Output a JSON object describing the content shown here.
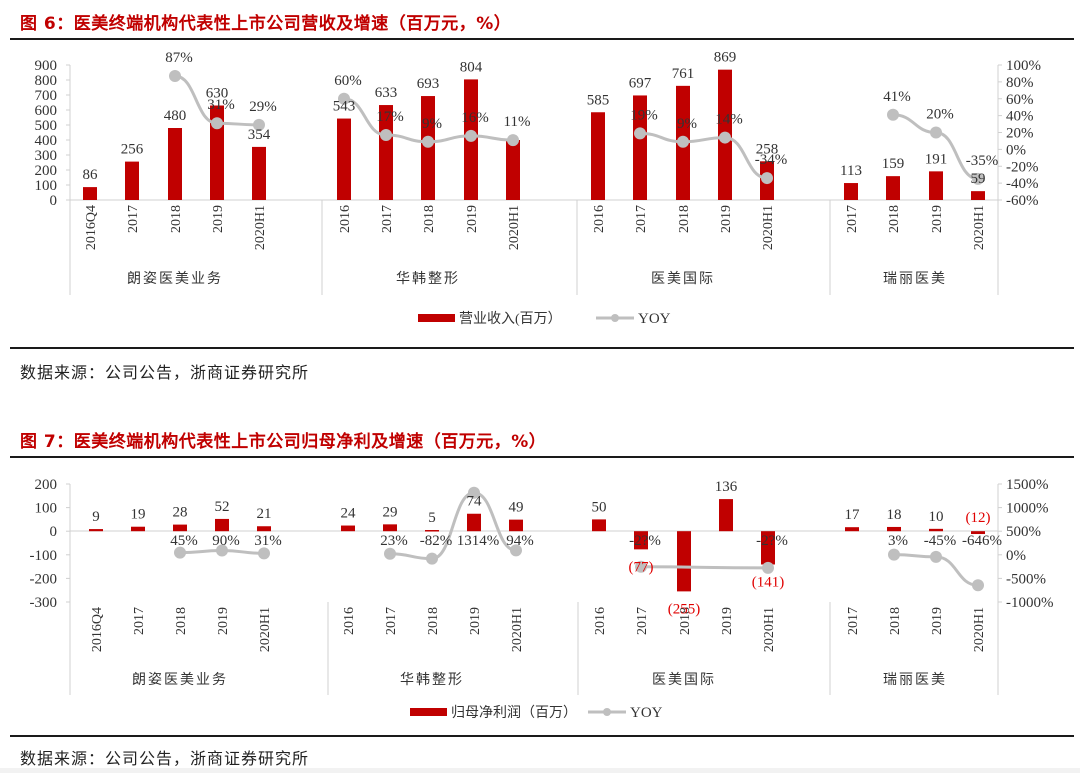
{
  "figures": [
    {
      "title": "图 6：医美终端机构代表性上市公司营收及增速（百万元，%）",
      "legend": {
        "bar": "营业收入(百万）",
        "line": "YOY"
      },
      "source": "数据来源：公司公告，浙商证券研究所"
    },
    {
      "title": "图 7：医美终端机构代表性上市公司归母净利及增速（百万元，%）",
      "legend": {
        "bar": "归母净利润（百万）",
        "line": "YOY"
      },
      "source": "数据来源：公司公告，浙商证券研究所"
    }
  ],
  "colors": {
    "bar": "#c00000",
    "line": "#bfbfbf",
    "negative_label": "#e00000",
    "title": "#c00000"
  },
  "chart_data": [
    {
      "type": "bar",
      "title": "图 6：医美终端机构代表性上市公司营收及增速（百万元，%）",
      "ylabel": "营业收入(百万）",
      "y2label": "YOY",
      "ylim": [
        0,
        900
      ],
      "yticks": [
        "900",
        "800",
        "700",
        "600",
        "500",
        "400",
        "300",
        "200",
        "100",
        "0"
      ],
      "y2lim": [
        -60,
        100
      ],
      "y2ticks": [
        "100%",
        "80%",
        "60%",
        "40%",
        "20%",
        "0%",
        "-20%",
        "-40%",
        "-60%"
      ],
      "groups": [
        {
          "name": "朗姿医美业务",
          "categories": [
            "2016Q4",
            "2017",
            "2018",
            "2019",
            "2020H1"
          ],
          "values": [
            86,
            256,
            480,
            630,
            354
          ],
          "value_labels": [
            "86",
            "256",
            "480",
            "630",
            "354"
          ],
          "yoy": [
            null,
            null,
            87,
            31,
            29
          ],
          "yoy_labels": [
            "",
            "",
            "87%",
            "31%",
            "29%"
          ]
        },
        {
          "name": "华韩整形",
          "categories": [
            "2016",
            "2017",
            "2018",
            "2019",
            "2020H1"
          ],
          "values": [
            543,
            633,
            693,
            804,
            400
          ],
          "value_labels": [
            "543",
            "633",
            "693",
            "804",
            ""
          ],
          "yoy": [
            60,
            17,
            9,
            16,
            11
          ],
          "yoy_labels": [
            "60%",
            "17%",
            "9%",
            "16%",
            "11%"
          ]
        },
        {
          "name": "医美国际",
          "categories": [
            "2016",
            "2017",
            "2018",
            "2019",
            "2020H1"
          ],
          "values": [
            585,
            697,
            761,
            869,
            258
          ],
          "value_labels": [
            "585",
            "697",
            "761",
            "869",
            "258"
          ],
          "yoy": [
            null,
            19,
            9,
            14,
            -34
          ],
          "yoy_labels": [
            "",
            "19%",
            "9%",
            "14%",
            "-34%"
          ]
        },
        {
          "name": "瑞丽医美",
          "categories": [
            "2017",
            "2018",
            "2019",
            "2020H1"
          ],
          "values": [
            113,
            159,
            191,
            59
          ],
          "value_labels": [
            "113",
            "159",
            "191",
            "59"
          ],
          "yoy": [
            null,
            41,
            20,
            -35
          ],
          "yoy_labels": [
            "",
            "41%",
            "20%",
            "-35%"
          ]
        }
      ],
      "legend": [
        "营业收入(百万）",
        "YOY"
      ],
      "legend_position": "bottom",
      "grid": false
    },
    {
      "type": "bar",
      "title": "图 7：医美终端机构代表性上市公司归母净利及增速（百万元，%）",
      "ylabel": "归母净利润（百万）",
      "y2label": "YOY",
      "ylim": [
        -300,
        200
      ],
      "yticks": [
        "200",
        "100",
        "0",
        "-100",
        "-200",
        "-300"
      ],
      "y2lim": [
        -1000,
        1500
      ],
      "y2ticks": [
        "1500%",
        "1000%",
        "500%",
        "0%",
        "-500%",
        "-1000%"
      ],
      "groups": [
        {
          "name": "朗姿医美业务",
          "categories": [
            "2016Q4",
            "2017",
            "2018",
            "2019",
            "2020H1"
          ],
          "values": [
            9,
            19,
            28,
            52,
            21
          ],
          "value_labels": [
            "9",
            "19",
            "28",
            "52",
            "21"
          ],
          "yoy": [
            null,
            null,
            45,
            90,
            31
          ],
          "yoy_labels": [
            "",
            "",
            "45%",
            "90%",
            "31%"
          ]
        },
        {
          "name": "华韩整形",
          "categories": [
            "2016",
            "2017",
            "2018",
            "2019",
            "2020H1"
          ],
          "values": [
            24,
            29,
            5,
            74,
            49
          ],
          "value_labels": [
            "24",
            "29",
            "5",
            "74",
            "49"
          ],
          "yoy": [
            null,
            23,
            -82,
            1314,
            94
          ],
          "yoy_labels": [
            "",
            "23%",
            "-82%",
            "1314%",
            "94%"
          ]
        },
        {
          "name": "医美国际",
          "categories": [
            "2016",
            "2017",
            "2018",
            "2019",
            "2020H1"
          ],
          "values": [
            50,
            -77,
            -255,
            136,
            -141
          ],
          "value_labels": [
            "50",
            "(77)",
            "(255)",
            "136",
            "(141)"
          ],
          "yoy": [
            null,
            -254,
            null,
            null,
            -278
          ],
          "yoy_labels": [
            "",
            "-2?%",
            "",
            "",
            "-2?%"
          ]
        },
        {
          "name": "瑞丽医美",
          "categories": [
            "2017",
            "2018",
            "2019",
            "2020H1"
          ],
          "values": [
            17,
            18,
            10,
            -12
          ],
          "value_labels": [
            "17",
            "18",
            "10",
            "(12)"
          ],
          "yoy": [
            null,
            3,
            -45,
            -646
          ],
          "yoy_labels": [
            "",
            "3%",
            "-45%",
            "-646%"
          ]
        }
      ],
      "legend": [
        "归母净利润（百万）",
        "YOY"
      ],
      "legend_position": "bottom",
      "grid": false
    }
  ]
}
